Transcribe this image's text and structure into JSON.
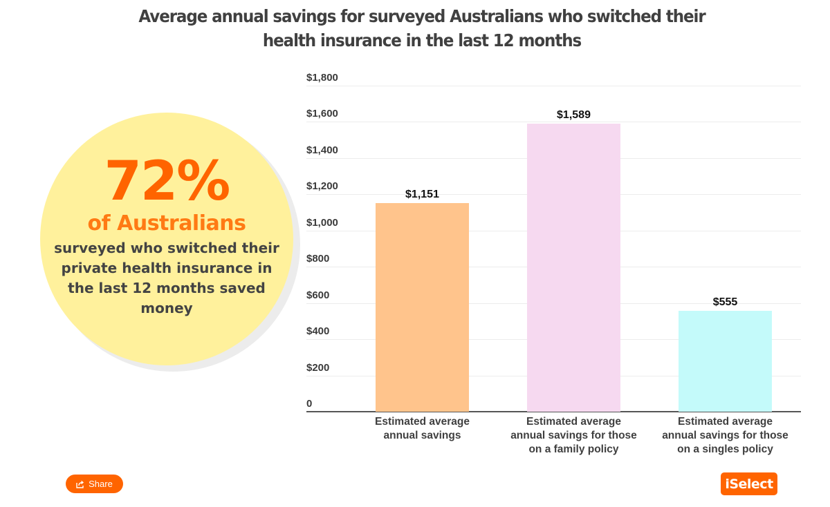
{
  "title": {
    "line1": "Average annual savings for surveyed Australians who switched their",
    "line2": "health insurance in the last 12 months"
  },
  "callout": {
    "stat": "72%",
    "subject": "of Australians",
    "description": "surveyed who switched their private health insurance in the last 12 months saved money",
    "circle_color": "#fff19c",
    "accent_color": "#ff6400"
  },
  "chart_data": {
    "type": "bar",
    "title": "Average annual savings for surveyed Australians who switched their health insurance in the last 12 months",
    "categories": [
      "Estimated average annual savings",
      "Estimated average annual savings for those on a family policy",
      "Estimated average annual savings for those on a singles policy"
    ],
    "values": [
      1151,
      1589,
      555
    ],
    "value_labels": [
      "$1,151",
      "$1,589",
      "$555"
    ],
    "colors": [
      "#ffc48c",
      "#f6d9f0",
      "#c4fafa"
    ],
    "xlabel": "",
    "ylabel": "",
    "ylim": [
      0,
      1800
    ],
    "yticks": [
      0,
      200,
      400,
      600,
      800,
      1000,
      1200,
      1400,
      1600,
      1800
    ],
    "ytick_labels": [
      "0",
      "$200",
      "$400",
      "$600",
      "$800",
      "$1,000",
      "$1,200",
      "$1,400",
      "$1,600",
      "$1,800"
    ],
    "grid": true,
    "legend": "none"
  },
  "xlabels": [
    [
      "Estimated average",
      "annual savings"
    ],
    [
      "Estimated average",
      "annual savings for those",
      "on a family policy"
    ],
    [
      "Estimated average",
      "annual savings for those",
      "on a singles policy"
    ]
  ],
  "footer": {
    "share_label": "Share",
    "share_icon": "share-icon",
    "logo_text": "iSelect"
  }
}
